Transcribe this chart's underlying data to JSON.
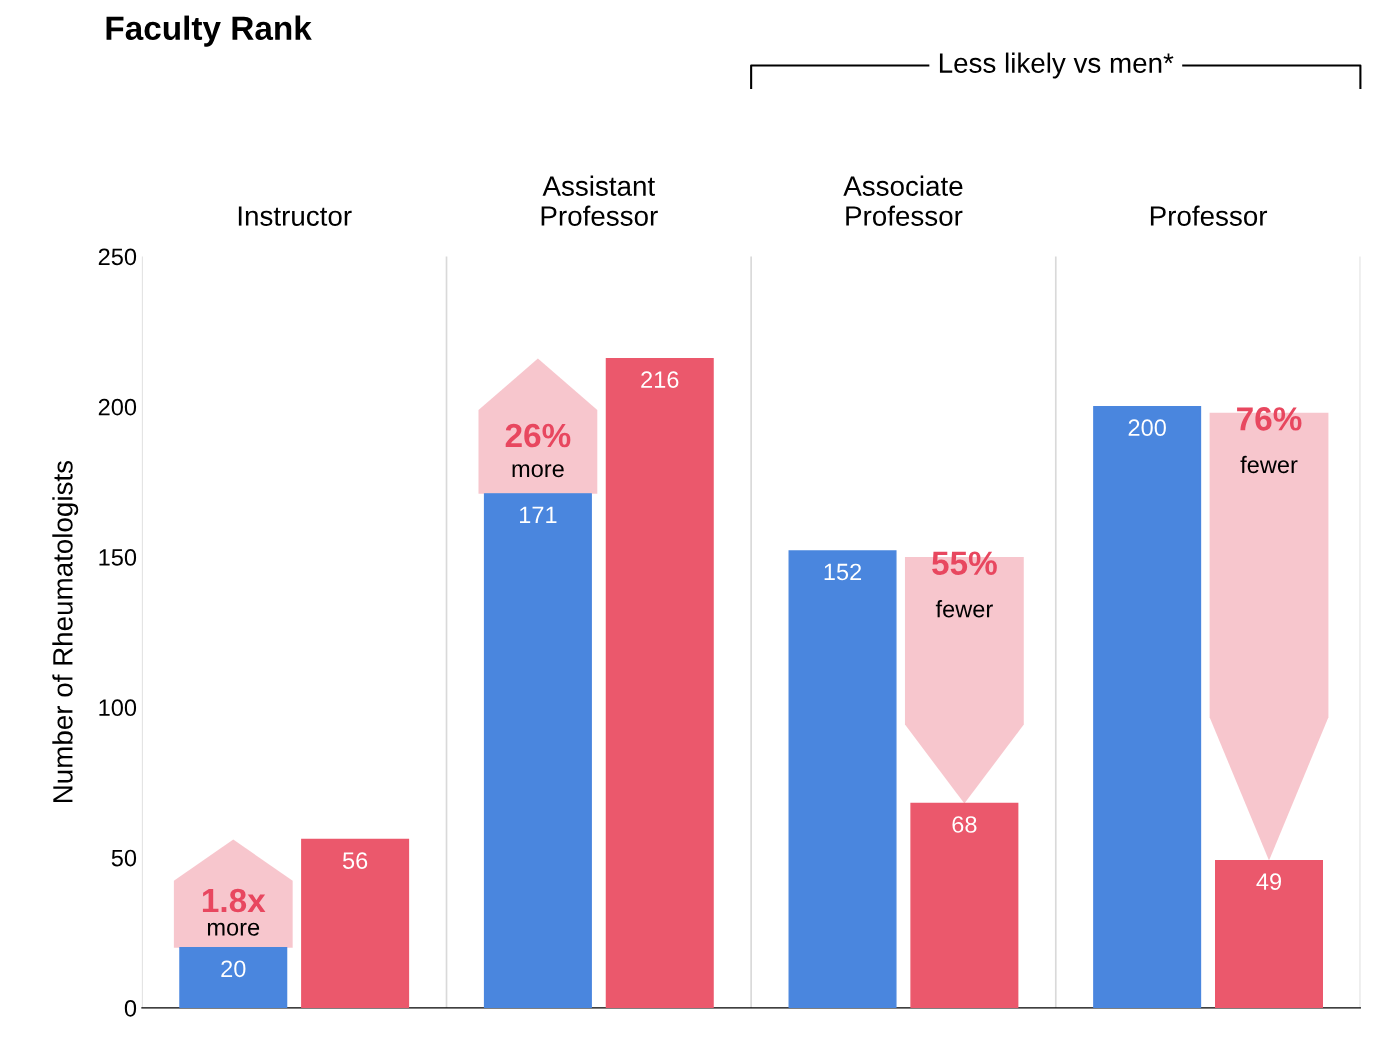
{
  "chart_data": {
    "type": "bar",
    "title": "Faculty Rank",
    "ylabel": "Number of Rheumatologists",
    "categories": [
      "Instructor",
      "Assistant\nProfessor",
      "Associate\nProfessor",
      "Professor"
    ],
    "series": [
      {
        "color": "#4a86de",
        "values": [
          20,
          171,
          152,
          200
        ]
      },
      {
        "color": "#eb586c",
        "values": [
          56,
          216,
          68,
          49
        ]
      }
    ],
    "ylim": [
      0,
      250
    ],
    "yticks": [
      0,
      50,
      100,
      150,
      200,
      250
    ],
    "grid": "x",
    "data_labels": true,
    "annotations": [
      "1.8x",
      "more",
      "26%",
      "more",
      "55%",
      "fewer",
      "76%",
      "fewer",
      "Less likely vs men*"
    ]
  }
}
